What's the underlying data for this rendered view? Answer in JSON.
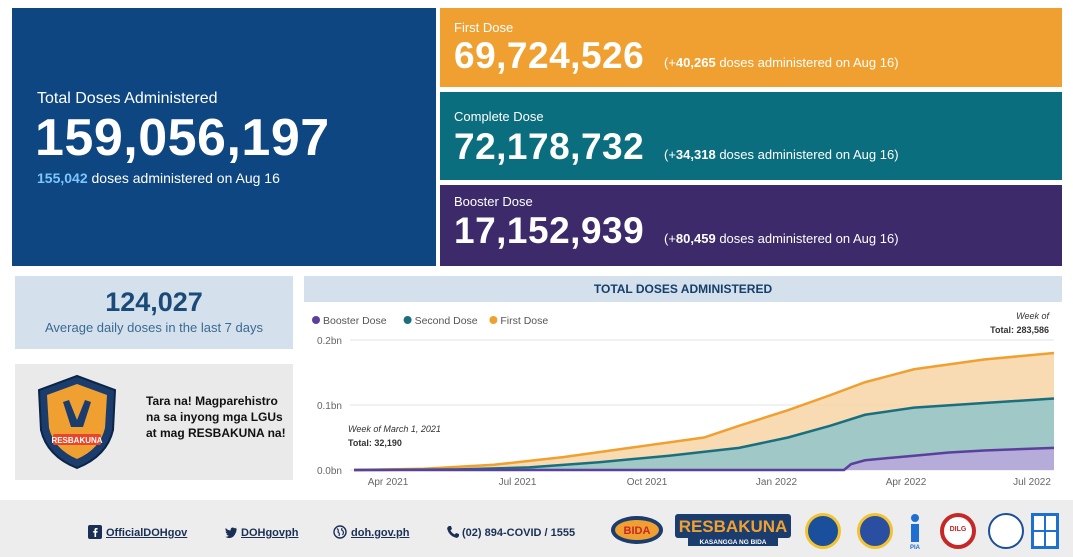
{
  "total": {
    "label": "Total Doses Administered",
    "value": "159,056,197",
    "daily_value": "155,042",
    "daily_text": "doses administered on Aug 16"
  },
  "first_dose": {
    "label": "First Dose",
    "value": "69,724,526",
    "delta_prefix": "(+",
    "delta": "40,265",
    "delta_suffix": "doses administered on Aug 16)"
  },
  "complete_dose": {
    "label": "Complete Dose",
    "value": "72,178,732",
    "delta_prefix": "(+",
    "delta": "34,318",
    "delta_suffix": "doses administered on Aug 16)"
  },
  "booster_dose": {
    "label": "Booster Dose",
    "value": "17,152,939",
    "delta_prefix": "(+",
    "delta": "80,459",
    "delta_suffix": "doses administered on Aug 16)"
  },
  "average": {
    "value": "124,027",
    "label": "Average daily doses in the last 7 days"
  },
  "promo": {
    "message": "Tara na! Magparehistro na sa inyong mga LGUs at mag RESBAKUNA na!",
    "logo_text": "RESBAKUNA"
  },
  "chart_data": {
    "type": "area",
    "title": "TOTAL DOSES ADMINISTERED",
    "legend_position": "top-left",
    "x_ticks": [
      "Apr 2021",
      "Jul 2021",
      "Oct 2021",
      "Jan 2022",
      "Apr 2022",
      "Jul 2022"
    ],
    "y_ticks": [
      "0.0bn",
      "0.1bn",
      "0.2bn"
    ],
    "ylim": [
      0,
      0.2
    ],
    "series": [
      {
        "name": "Booster Dose",
        "color": "#5b3f9c",
        "fill": "#b9a7dc",
        "values": [
          [
            0,
            0
          ],
          [
            0.7,
            0
          ],
          [
            0.71,
            0.009
          ],
          [
            0.73,
            0.015
          ],
          [
            0.8,
            0.022
          ],
          [
            0.85,
            0.027
          ],
          [
            0.9,
            0.03
          ],
          [
            1.0,
            0.034
          ]
        ]
      },
      {
        "name": "Second Dose",
        "color": "#1a6f7e",
        "fill": "#8fc4ca",
        "values": [
          [
            0,
            0
          ],
          [
            0.15,
            0.001
          ],
          [
            0.25,
            0.004
          ],
          [
            0.35,
            0.012
          ],
          [
            0.45,
            0.022
          ],
          [
            0.55,
            0.034
          ],
          [
            0.62,
            0.05
          ],
          [
            0.68,
            0.068
          ],
          [
            0.73,
            0.085
          ],
          [
            0.8,
            0.096
          ],
          [
            0.9,
            0.103
          ],
          [
            1.0,
            0.11
          ]
        ]
      },
      {
        "name": "First Dose",
        "color": "#f0a030",
        "fill": "#f7d5a5",
        "values": [
          [
            0,
            0
          ],
          [
            0.1,
            0.002
          ],
          [
            0.2,
            0.008
          ],
          [
            0.3,
            0.02
          ],
          [
            0.4,
            0.035
          ],
          [
            0.5,
            0.05
          ],
          [
            0.55,
            0.068
          ],
          [
            0.62,
            0.092
          ],
          [
            0.68,
            0.115
          ],
          [
            0.73,
            0.135
          ],
          [
            0.8,
            0.155
          ],
          [
            0.9,
            0.17
          ],
          [
            1.0,
            0.18
          ]
        ]
      }
    ],
    "annotations": [
      {
        "label": "Week of March 1, 2021",
        "total_label": "Total: 32,190"
      },
      {
        "label": "Week of",
        "total_label": "Total: 283,586"
      }
    ]
  },
  "footer": {
    "facebook": "OfficialDOHgov",
    "twitter": "DOHgovph",
    "website": "doh.gov.ph",
    "phone": "(02) 894-COVID / 1555",
    "logo_resbakuna": "RESBAKUNA",
    "logo_resbakuna_sub": "KASANGGA NG BIDA",
    "logo_bida": "BIDA",
    "logo_dilg": "DILG",
    "logo_pia": "PIA"
  }
}
